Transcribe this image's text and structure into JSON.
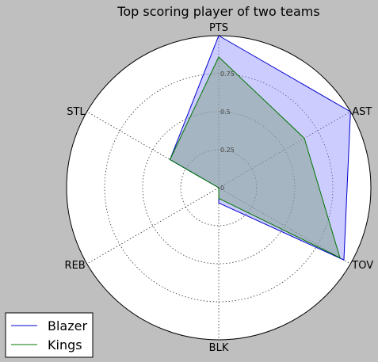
{
  "chart_data": {
    "type": "radar",
    "title": "Top scoring player of two teams",
    "axes": [
      "PTS",
      "AST",
      "TOV",
      "BLK",
      "REB",
      "STL"
    ],
    "r_ticks": [
      "0",
      "0.25",
      "0.5",
      "0.75"
    ],
    "r_tick_values": [
      0,
      0.25,
      0.5,
      0.75
    ],
    "rmax": 1.0,
    "grid": true,
    "legend_position": "lower-left",
    "series": [
      {
        "name": "Blazer",
        "values": [
          1.0,
          1.0,
          0.95,
          0.1,
          0.0,
          0.37
        ],
        "line_color": "#0000cc",
        "fill_color": "#8f8fff",
        "fill_opacity": 0.45
      },
      {
        "name": "Kings",
        "values": [
          0.86,
          0.65,
          0.92,
          0.07,
          0.0,
          0.37
        ],
        "line_color": "#007700",
        "fill_color": "#85a38e",
        "fill_opacity": 0.55
      }
    ]
  }
}
